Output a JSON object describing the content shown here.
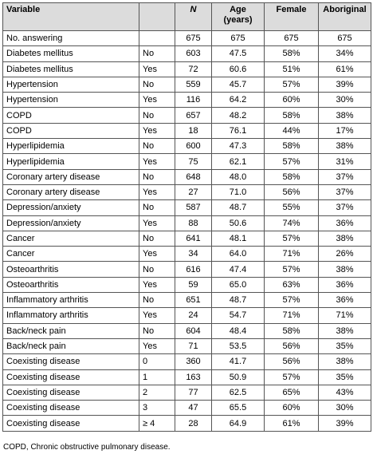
{
  "table": {
    "header": {
      "variable": "Variable",
      "n": "N",
      "age": "Age (years)",
      "female": "Female",
      "aboriginal": "Aboriginal"
    },
    "rows": [
      {
        "variable": "No. answering",
        "n": "675",
        "age": "675",
        "female": "675",
        "aboriginal": "675"
      },
      {
        "variable": "Diabetes mellitus",
        "group": "No",
        "n": "603",
        "age": "47.5",
        "female": "58%",
        "aboriginal": "34%"
      },
      {
        "variable": "Diabetes mellitus",
        "group": "Yes",
        "n": "72",
        "age": "60.6",
        "female": "51%",
        "aboriginal": "61%"
      },
      {
        "variable": "Hypertension",
        "group": "No",
        "n": "559",
        "age": "45.7",
        "female": "57%",
        "aboriginal": "39%"
      },
      {
        "variable": "Hypertension",
        "group": "Yes",
        "n": "116",
        "age": "64.2",
        "female": "60%",
        "aboriginal": "30%"
      },
      {
        "variable": "COPD",
        "group": "No",
        "n": "657",
        "age": "48.2",
        "female": "58%",
        "aboriginal": "38%"
      },
      {
        "variable": "COPD",
        "group": "Yes",
        "n": "18",
        "age": "76.1",
        "female": "44%",
        "aboriginal": "17%"
      },
      {
        "variable": "Hyperlipidemia",
        "group": "No",
        "n": "600",
        "age": "47.3",
        "female": "58%",
        "aboriginal": "38%"
      },
      {
        "variable": "Hyperlipidemia",
        "group": "Yes",
        "n": "75",
        "age": "62.1",
        "female": "57%",
        "aboriginal": "31%"
      },
      {
        "variable": "Coronary artery disease",
        "group": "No",
        "n": "648",
        "age": "48.0",
        "female": "58%",
        "aboriginal": "37%"
      },
      {
        "variable": "Coronary artery disease",
        "group": "Yes",
        "n": "27",
        "age": "71.0",
        "female": "56%",
        "aboriginal": "37%"
      },
      {
        "variable": "Depression/anxiety",
        "group": "No",
        "n": "587",
        "age": "48.7",
        "female": "55%",
        "aboriginal": "37%"
      },
      {
        "variable": "Depression/anxiety",
        "group": "Yes",
        "n": "88",
        "age": "50.6",
        "female": "74%",
        "aboriginal": "36%"
      },
      {
        "variable": "Cancer",
        "group": "No",
        "n": "641",
        "age": "48.1",
        "female": "57%",
        "aboriginal": "38%"
      },
      {
        "variable": "Cancer",
        "group": "Yes",
        "n": "34",
        "age": "64.0",
        "female": "71%",
        "aboriginal": "26%"
      },
      {
        "variable": "Osteoarthritis",
        "group": "No",
        "n": "616",
        "age": "47.4",
        "female": "57%",
        "aboriginal": "38%"
      },
      {
        "variable": "Osteoarthritis",
        "group": "Yes",
        "n": "59",
        "age": "65.0",
        "female": "63%",
        "aboriginal": "36%"
      },
      {
        "variable": "Inflammatory arthritis",
        "group": "No",
        "n": "651",
        "age": "48.7",
        "female": "57%",
        "aboriginal": "36%"
      },
      {
        "variable": "Inflammatory arthritis",
        "group": "Yes",
        "n": "24",
        "age": "54.7",
        "female": "71%",
        "aboriginal": "71%"
      },
      {
        "variable": "Back/neck pain",
        "group": "No",
        "n": "604",
        "age": "48.4",
        "female": "58%",
        "aboriginal": "38%"
      },
      {
        "variable": "Back/neck pain",
        "group": "Yes",
        "n": "71",
        "age": "53.5",
        "female": "56%",
        "aboriginal": "35%"
      },
      {
        "variable": "Coexisting disease",
        "group": "0",
        "n": "360",
        "age": "41.7",
        "female": "56%",
        "aboriginal": "38%"
      },
      {
        "variable": "Coexisting disease",
        "group": "1",
        "n": "163",
        "age": "50.9",
        "female": "57%",
        "aboriginal": "35%"
      },
      {
        "variable": "Coexisting disease",
        "group": "2",
        "n": "77",
        "age": "62.5",
        "female": "65%",
        "aboriginal": "43%"
      },
      {
        "variable": "Coexisting disease",
        "group": "3",
        "n": "47",
        "age": "65.5",
        "female": "60%",
        "aboriginal": "30%"
      },
      {
        "variable": "Coexisting disease",
        "group": "≥ 4",
        "n": "28",
        "age": "64.9",
        "female": "61%",
        "aboriginal": "39%"
      }
    ],
    "footnote": "COPD, Chronic obstructive pulmonary disease."
  }
}
